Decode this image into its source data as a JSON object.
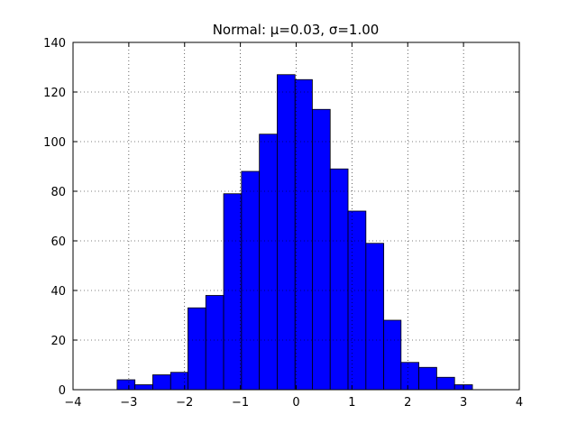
{
  "chart_data": {
    "type": "histogram",
    "title": "Normal: μ=0.03, σ=1.00",
    "bins": [
      -3.21,
      -2.89,
      -2.57,
      -2.25,
      -1.94,
      -1.62,
      -1.3,
      -0.98,
      -0.66,
      -0.34,
      -0.02,
      0.29,
      0.61,
      0.93,
      1.25,
      1.57,
      1.88,
      2.2,
      2.52,
      2.84,
      3.16
    ],
    "values": [
      4,
      2,
      6,
      7,
      33,
      38,
      79,
      88,
      103,
      127,
      125,
      113,
      89,
      72,
      59,
      28,
      11,
      9,
      5,
      2
    ],
    "color": "#0000ff",
    "xlim": [
      -4,
      4
    ],
    "xticks": [
      {
        "value": -4,
        "label": "−4"
      },
      {
        "value": -3,
        "label": "−3"
      },
      {
        "value": -2,
        "label": "−2"
      },
      {
        "value": -1,
        "label": "−1"
      },
      0,
      1,
      2,
      3,
      4
    ],
    "ylim": [
      0,
      140
    ],
    "yticks": [
      0,
      20,
      40,
      60,
      80,
      100,
      120,
      140
    ],
    "grid": true
  }
}
